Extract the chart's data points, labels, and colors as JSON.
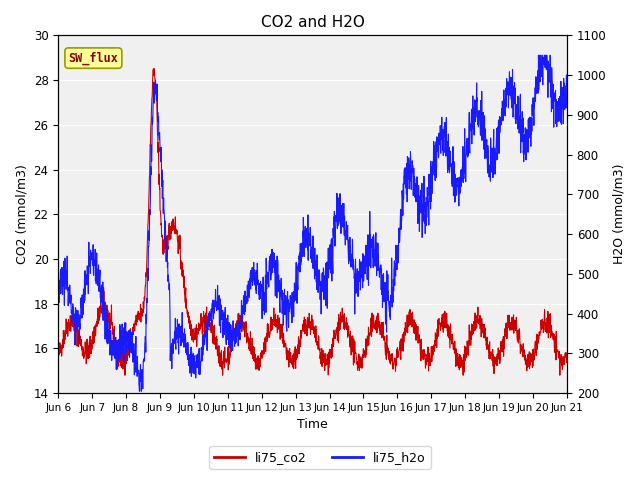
{
  "title": "CO2 and H2O",
  "xlabel": "Time",
  "ylabel_left": "CO2 (mmol/m3)",
  "ylabel_right": "H2O (mmol/m3)",
  "co2_color": "#cc0000",
  "h2o_color": "#1a1aff",
  "ylim_left": [
    14,
    30
  ],
  "ylim_right": [
    200,
    1100
  ],
  "yticks_left": [
    14,
    16,
    18,
    20,
    22,
    24,
    26,
    28,
    30
  ],
  "yticks_right": [
    200,
    300,
    400,
    500,
    600,
    700,
    800,
    900,
    1000,
    1100
  ],
  "xtick_labels": [
    "Jun 6",
    "Jun 7",
    "Jun 8",
    "Jun 9",
    "Jun 10",
    "Jun 11",
    "Jun 12",
    "Jun 13",
    "Jun 14",
    "Jun 15",
    "Jun 16",
    "Jun 17",
    "Jun 18",
    "Jun 19",
    "Jun 20",
    "Jun 21"
  ],
  "legend_labels": [
    "li75_co2",
    "li75_h2o"
  ],
  "sw_flux_label": "SW_flux",
  "plot_bg_color": "#f0f0f0",
  "linewidth": 0.8,
  "n_points": 2000
}
